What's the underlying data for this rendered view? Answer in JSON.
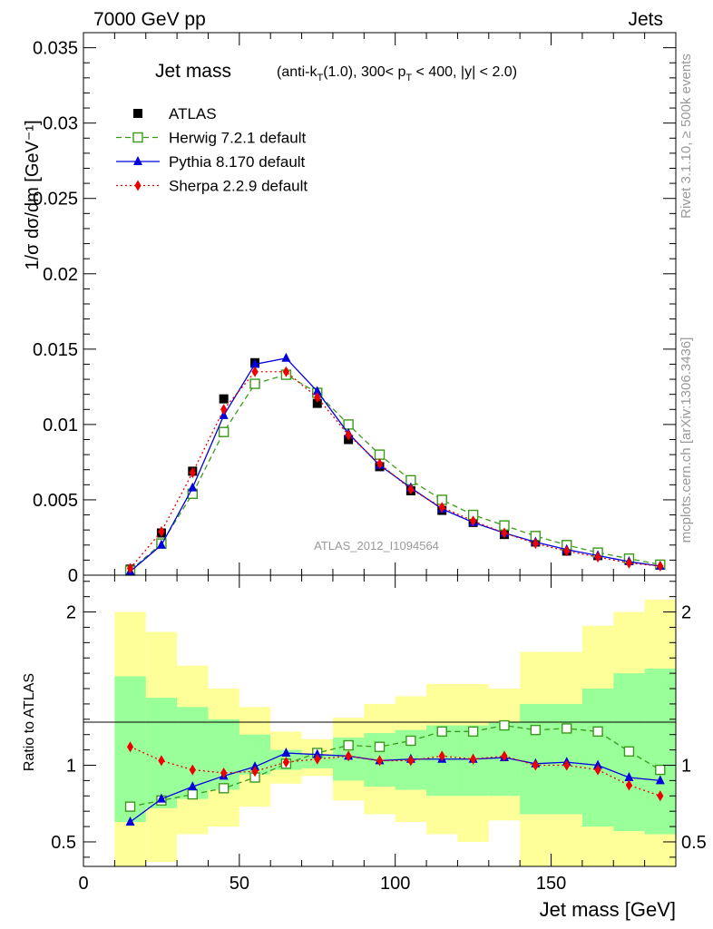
{
  "header": {
    "left": "7000 GeV pp",
    "right": "Jets"
  },
  "side": {
    "rivet": "Rivet 3.1.10, ≥ 500k events",
    "mcplots": "mcplots.cern.ch [arXiv:1306.3436]"
  },
  "chart_data": [
    {
      "type": "scatter",
      "title_main": "Jet mass",
      "title_sub": "(anti-k_T(1.0), 300< p_T < 400, |y| < 2.0)",
      "ylabel": "1/σ dσ/dm [GeV⁻¹]",
      "watermark": "ATLAS_2012_I1094564",
      "xlim": [
        0,
        190
      ],
      "ylim": [
        0,
        0.036
      ],
      "yticks": [
        0,
        0.005,
        0.01,
        0.015,
        0.02,
        0.025,
        0.03,
        0.035
      ],
      "ytick_labels": [
        "0",
        "0.005",
        "0.01",
        "0.015",
        "0.02",
        "0.025",
        "0.03",
        "0.035"
      ],
      "x": [
        15,
        25,
        35,
        45,
        55,
        65,
        75,
        85,
        95,
        105,
        115,
        125,
        135,
        145,
        155,
        165,
        175,
        185
      ],
      "series": [
        {
          "name": "ATLAS",
          "color": "#000000",
          "marker": "square-filled",
          "values": [
            0.0004,
            0.0028,
            0.0069,
            0.0117,
            0.0141,
            0.0133,
            0.0114,
            0.009,
            0.0072,
            0.0056,
            0.0043,
            0.0035,
            0.0027,
            0.0022,
            0.0016,
            0.0013,
            0.001,
            0.0007
          ]
        },
        {
          "name": "Herwig 7.2.1 default",
          "color": "#3a9a1a",
          "marker": "square-open",
          "dash": "6,4",
          "values": [
            0.0003,
            0.0021,
            0.0054,
            0.0095,
            0.0127,
            0.0133,
            0.0121,
            0.01,
            0.008,
            0.0063,
            0.005,
            0.004,
            0.0033,
            0.0026,
            0.002,
            0.0015,
            0.0011,
            0.0007
          ]
        },
        {
          "name": "Pythia 8.170 default",
          "color": "#0000dd",
          "marker": "triangle",
          "dash": "",
          "values": [
            0.00025,
            0.002,
            0.0058,
            0.0106,
            0.014,
            0.0144,
            0.0122,
            0.0094,
            0.0073,
            0.0058,
            0.0044,
            0.0035,
            0.0028,
            0.0022,
            0.0017,
            0.0013,
            0.0009,
            0.0006
          ]
        },
        {
          "name": "Sherpa 2.2.9 default",
          "color": "#ee0000",
          "marker": "diamond",
          "dash": "2,3",
          "values": [
            0.00045,
            0.0029,
            0.0068,
            0.011,
            0.0135,
            0.0135,
            0.0118,
            0.0093,
            0.0074,
            0.0057,
            0.0045,
            0.0036,
            0.0028,
            0.0021,
            0.0016,
            0.0012,
            0.0008,
            0.0006
          ]
        }
      ]
    },
    {
      "type": "scatter",
      "ylabel": "Ratio to ATLAS",
      "xlabel": "Jet mass [GeV]",
      "xlim": [
        0,
        190
      ],
      "ylim": [
        0.34,
        2.24
      ],
      "xticks": [
        0,
        50,
        100,
        150
      ],
      "xtick_labels": [
        "0",
        "50",
        "100",
        "150"
      ],
      "yticks": [
        0.5,
        1,
        2
      ],
      "ytick_labels": [
        "0.5",
        "1",
        "2"
      ],
      "bins": [
        [
          10,
          20
        ],
        [
          20,
          30
        ],
        [
          30,
          40
        ],
        [
          40,
          50
        ],
        [
          50,
          60
        ],
        [
          60,
          70
        ],
        [
          70,
          80
        ],
        [
          80,
          90
        ],
        [
          90,
          100
        ],
        [
          100,
          110
        ],
        [
          110,
          120
        ],
        [
          120,
          130
        ],
        [
          130,
          140
        ],
        [
          140,
          150
        ],
        [
          150,
          160
        ],
        [
          160,
          170
        ],
        [
          170,
          180
        ],
        [
          180,
          190
        ]
      ],
      "band_yellow": [
        [
          0.34,
          2.0
        ],
        [
          0.37,
          1.87
        ],
        [
          0.55,
          1.65
        ],
        [
          0.6,
          1.5
        ],
        [
          0.73,
          1.38
        ],
        [
          0.88,
          1.22
        ],
        [
          0.93,
          1.17
        ],
        [
          0.77,
          1.31
        ],
        [
          0.68,
          1.4
        ],
        [
          0.63,
          1.45
        ],
        [
          0.55,
          1.53
        ],
        [
          0.5,
          1.53
        ],
        [
          0.64,
          1.5
        ],
        [
          0.34,
          1.74
        ],
        [
          0.34,
          1.74
        ],
        [
          0.34,
          1.91
        ],
        [
          0.34,
          2.0
        ],
        [
          0.34,
          2.08
        ]
      ],
      "band_green": [
        [
          0.63,
          1.58
        ],
        [
          0.72,
          1.44
        ],
        [
          0.78,
          1.38
        ],
        [
          0.84,
          1.3
        ],
        [
          0.94,
          1.2
        ],
        [
          0.97,
          1.1
        ],
        [
          0.98,
          1.07
        ],
        [
          0.9,
          1.18
        ],
        [
          0.86,
          1.21
        ],
        [
          0.84,
          1.23
        ],
        [
          0.8,
          1.26
        ],
        [
          0.8,
          1.26
        ],
        [
          0.8,
          1.28
        ],
        [
          0.68,
          1.4
        ],
        [
          0.68,
          1.4
        ],
        [
          0.6,
          1.5
        ],
        [
          0.57,
          1.6
        ],
        [
          0.55,
          1.63
        ]
      ],
      "series": [
        {
          "name": "Herwig 7.2.1 default",
          "values": [
            0.73,
            0.77,
            0.81,
            0.85,
            0.92,
            1.01,
            1.08,
            1.13,
            1.12,
            1.16,
            1.22,
            1.22,
            1.26,
            1.23,
            1.24,
            1.22,
            1.09,
            0.97
          ]
        },
        {
          "name": "Pythia 8.170 default",
          "values": [
            0.63,
            0.78,
            0.86,
            0.93,
            0.99,
            1.08,
            1.07,
            1.06,
            1.03,
            1.04,
            1.04,
            1.04,
            1.05,
            1.01,
            1.02,
            1.0,
            0.92,
            0.9
          ]
        },
        {
          "name": "Sherpa 2.2.9 default",
          "values": [
            1.12,
            1.03,
            0.97,
            0.95,
            0.96,
            1.02,
            1.04,
            1.06,
            1.03,
            1.03,
            1.06,
            1.04,
            1.06,
            1.0,
            1.0,
            0.97,
            0.87,
            0.8
          ]
        }
      ]
    }
  ]
}
